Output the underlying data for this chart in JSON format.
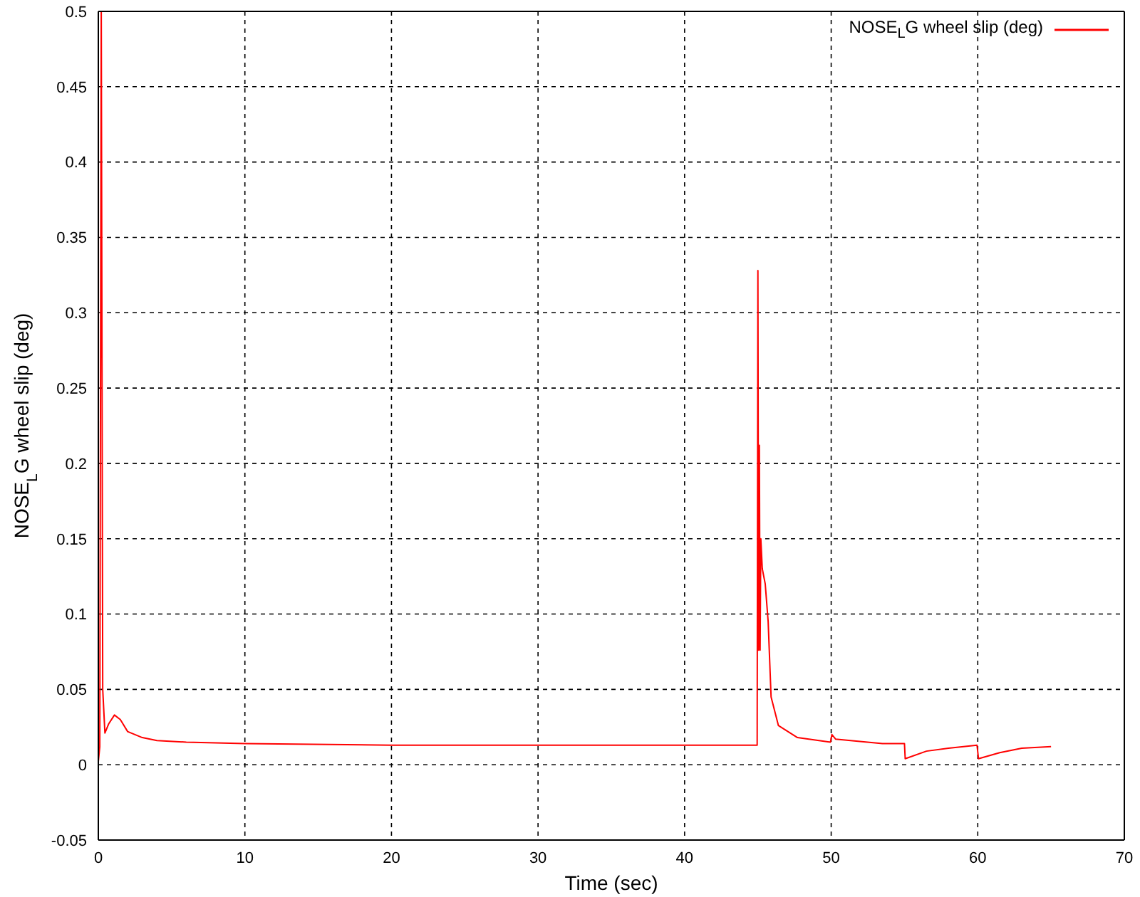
{
  "chart_data": {
    "type": "line",
    "xlabel": "Time (sec)",
    "ylabel": "NOSE$_{L}$G wheel slip (deg)",
    "x": [
      0,
      0.1,
      0.2,
      0.3,
      0.45,
      0.7,
      1.1,
      1.5,
      2,
      3,
      4,
      6,
      10,
      20,
      30,
      40,
      44.95,
      45,
      45.05,
      45.1,
      45.15,
      45.2,
      45.3,
      45.5,
      45.7,
      45.9,
      46.4,
      47.7,
      49.95,
      50.05,
      50.3,
      53.5,
      55,
      55.05,
      56.5,
      58,
      59.95,
      60.05,
      61.5,
      63,
      65
    ],
    "series": [
      {
        "name": "NOSE$_{L}$G wheel slip (deg)",
        "color": "#ff0000",
        "values": [
          0.002,
          0.012,
          0.5,
          0.05,
          0.021,
          0.027,
          0.033,
          0.03,
          0.022,
          0.018,
          0.016,
          0.015,
          0.014,
          0.013,
          0.013,
          0.013,
          0.013,
          0.328,
          0.076,
          0.212,
          0.076,
          0.15,
          0.13,
          0.12,
          0.095,
          0.045,
          0.026,
          0.018,
          0.015,
          0.02,
          0.017,
          0.014,
          0.014,
          0.004,
          0.009,
          0.011,
          0.013,
          0.004,
          0.008,
          0.011,
          0.012
        ]
      }
    ],
    "xlim": [
      0,
      70
    ],
    "ylim": [
      -0.05,
      0.5
    ],
    "xticks": [
      0,
      10,
      20,
      30,
      40,
      50,
      60,
      70
    ],
    "yticks": [
      -0.05,
      0,
      0.05,
      0.1,
      0.15,
      0.2,
      0.25,
      0.3,
      0.35,
      0.4,
      0.45,
      0.5
    ],
    "grid": true,
    "legend": "top right",
    "marker": "none",
    "line_style": "solid"
  }
}
